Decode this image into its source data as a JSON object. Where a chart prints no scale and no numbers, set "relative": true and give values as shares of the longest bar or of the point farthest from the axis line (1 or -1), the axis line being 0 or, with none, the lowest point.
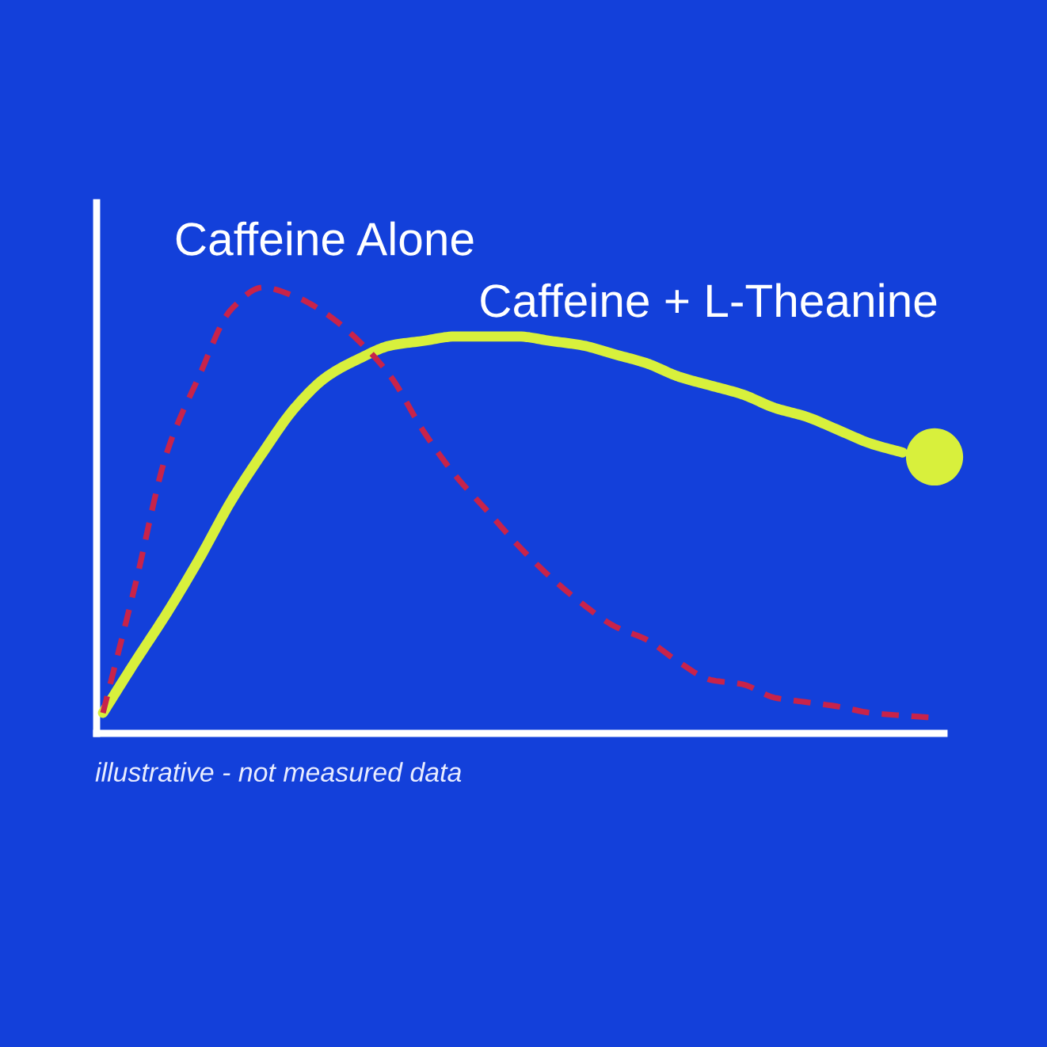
{
  "chart_data": {
    "type": "line",
    "relative": true,
    "legend": false,
    "marker": "none",
    "categories": [
      null,
      null,
      null,
      null,
      null,
      null,
      null,
      null,
      null,
      null,
      null,
      null,
      null,
      null,
      null,
      null,
      null,
      null,
      null,
      null,
      null,
      null,
      null,
      null,
      null,
      null,
      null
    ],
    "series": [
      {
        "name": "Caffeine Alone",
        "color": "#c8234a",
        "line_style": "dashed",
        "values": [
          0.046,
          0.33,
          0.63,
          0.8,
          0.95,
          1.0,
          0.98,
          0.94,
          0.88,
          0.8,
          0.68,
          0.58,
          0.5,
          0.42,
          0.35,
          0.29,
          0.24,
          0.21,
          0.16,
          0.12,
          0.11,
          0.08,
          0.07,
          0.06,
          0.046,
          0.04,
          0.035
        ]
      },
      {
        "name": "Caffeine + L-Theanine",
        "color": "#d8f03c",
        "line_style": "solid",
        "values": [
          0.046,
          0.16,
          0.27,
          0.39,
          0.52,
          0.63,
          0.73,
          0.8,
          0.84,
          0.87,
          0.88,
          0.89,
          0.89,
          0.89,
          0.88,
          0.87,
          0.85,
          0.83,
          0.8,
          0.78,
          0.76,
          0.73,
          0.71,
          0.68,
          0.65,
          0.63,
          null
        ]
      },
      {
        "color": "#d8f03c",
        "marker": "circle",
        "values": [
          null,
          null,
          null,
          null,
          null,
          null,
          null,
          null,
          null,
          null,
          null,
          null,
          null,
          null,
          null,
          null,
          null,
          null,
          null,
          null,
          null,
          null,
          null,
          null,
          null,
          null,
          0.62
        ]
      }
    ],
    "annotations": [
      "illustrative - not measured data"
    ]
  }
}
